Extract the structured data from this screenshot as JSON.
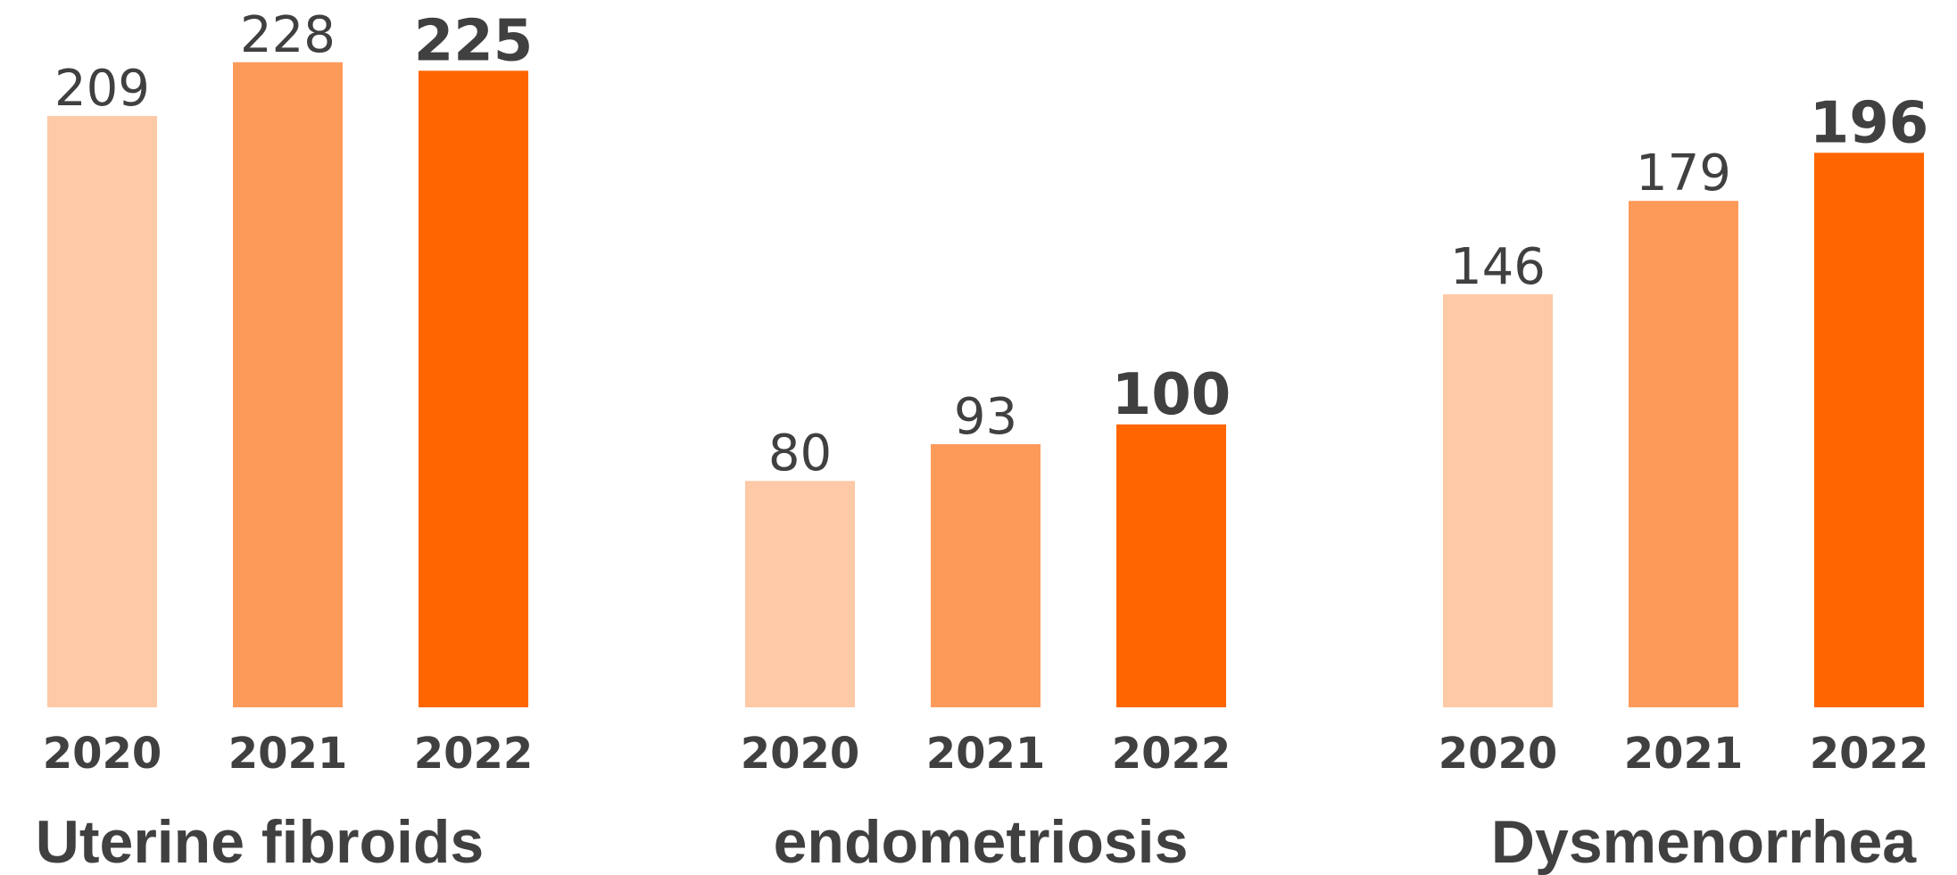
{
  "chart_data": [
    {
      "type": "bar",
      "title": "Uterine fibroids",
      "categories": [
        "2020",
        "2021",
        "2022"
      ],
      "values": [
        209,
        228,
        225
      ],
      "colors": [
        "#fdc9a6",
        "#fd9a5a",
        "#ff6600"
      ],
      "ylim": [
        0,
        250
      ]
    },
    {
      "type": "bar",
      "title": "endometriosis",
      "categories": [
        "2020",
        "2021",
        "2022"
      ],
      "values": [
        80,
        93,
        100
      ],
      "colors": [
        "#fdc9a6",
        "#fd9a5a",
        "#ff6600"
      ],
      "ylim": [
        0,
        250
      ]
    },
    {
      "type": "bar",
      "title": "Dysmenorrhea",
      "categories": [
        "2020",
        "2021",
        "2022"
      ],
      "values": [
        146,
        179,
        196
      ],
      "colors": [
        "#fdc9a6",
        "#fd9a5a",
        "#ff6600"
      ],
      "ylim": [
        0,
        250
      ]
    }
  ]
}
